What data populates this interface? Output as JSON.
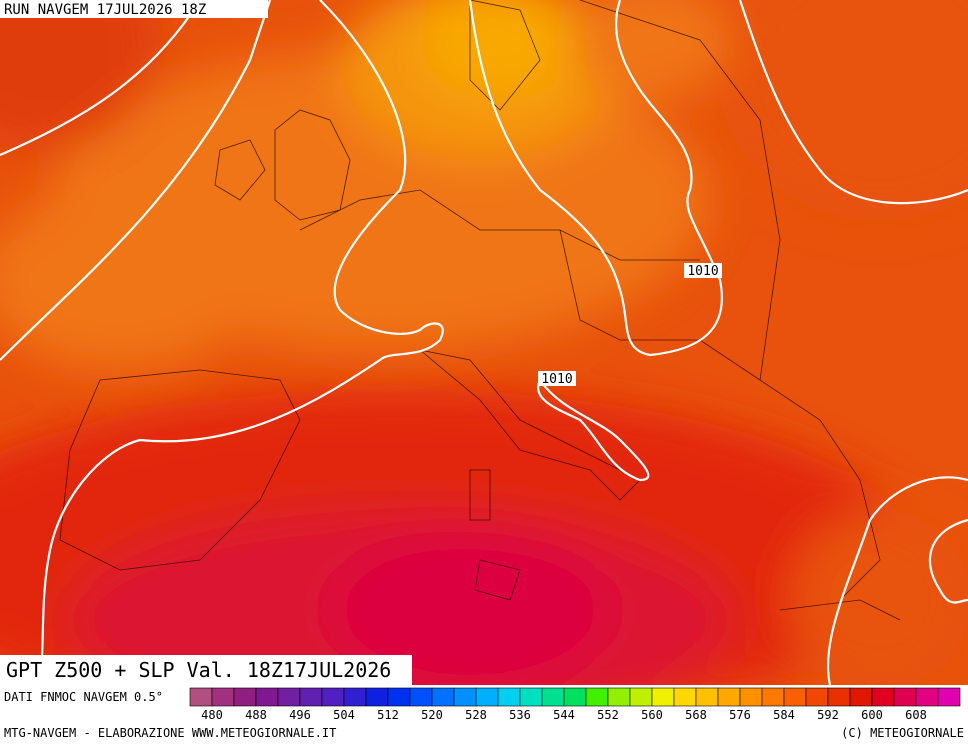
{
  "header": {
    "title": "RUN NAVGEM 17JUL2026 18Z"
  },
  "map": {
    "title": "GPT Z500 + SLP Val. 18Z17JUL2026",
    "isobar_labels": [
      "1010",
      "1010"
    ]
  },
  "legend": {
    "source": "DATI FNMOC NAVGEM 0.5°",
    "colors": [
      "#b05080",
      "#a03080",
      "#902080",
      "#801890",
      "#7020a0",
      "#6020b0",
      "#5020c0",
      "#3020d0",
      "#1020e0",
      "#0030f0",
      "#0050ff",
      "#0070ff",
      "#0090ff",
      "#00b0ff",
      "#00d0f0",
      "#00e0c0",
      "#00e090",
      "#00e060",
      "#40f000",
      "#90f000",
      "#c0f000",
      "#f0f000",
      "#ffd800",
      "#ffc000",
      "#ffa800",
      "#ff9000",
      "#ff7800",
      "#f86000",
      "#f04800",
      "#e83000",
      "#e01800",
      "#e00020",
      "#e00050",
      "#e00080",
      "#e000b0"
    ],
    "labels": [
      480,
      488,
      496,
      504,
      512,
      520,
      528,
      536,
      544,
      552,
      560,
      568,
      576,
      584,
      592,
      600,
      608
    ]
  },
  "footer": {
    "left": "MTG-NAVGEM - ELABORAZIONE WWW.METEOGIORNALE.IT",
    "right": "(C) METEOGIORNALE"
  }
}
